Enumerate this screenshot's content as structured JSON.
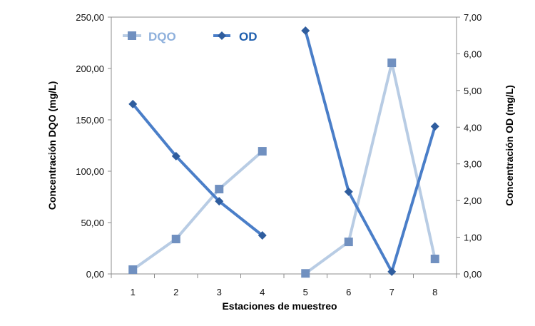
{
  "chart_data": {
    "type": "line",
    "title": "",
    "xlabel": "Estaciones de muestreo",
    "ylabel": "Concentración DQO (mg/L)",
    "y2label": "Concentración OD (mg/L)",
    "categories": [
      "1",
      "2",
      "3",
      "4",
      "5",
      "6",
      "7",
      "8"
    ],
    "ylim": [
      0,
      250
    ],
    "y2lim": [
      0,
      7
    ],
    "yticks": [
      "0,00",
      "50,00",
      "100,00",
      "150,00",
      "200,00",
      "250,00"
    ],
    "y2ticks": [
      "0,00",
      "1,00",
      "2,00",
      "3,00",
      "4,00",
      "5,00",
      "6,00",
      "7,00"
    ],
    "grid": false,
    "legend_position": "top-left inside",
    "series": [
      {
        "name": "DQO",
        "axis": "left",
        "marker": "square",
        "line_color": "#b8cce4",
        "marker_color": "#7090c0",
        "values": [
          4.2,
          34.0,
          82.6,
          119.4,
          0.5,
          31.2,
          205.5,
          14.6
        ],
        "segments": [
          [
            0,
            3
          ],
          [
            4,
            7
          ]
        ]
      },
      {
        "name": "OD",
        "axis": "right",
        "marker": "diamond",
        "line_color": "#4a7ec8",
        "marker_color": "#2f5d9e",
        "values": [
          4.63,
          3.21,
          1.98,
          1.05,
          6.63,
          2.24,
          0.06,
          4.02
        ],
        "segments": [
          [
            0,
            3
          ],
          [
            4,
            7
          ]
        ]
      }
    ]
  },
  "legend": {
    "items": [
      {
        "label": "DQO",
        "color": "#8eb0dc"
      },
      {
        "label": "OD",
        "color": "#1f5fae"
      }
    ]
  }
}
